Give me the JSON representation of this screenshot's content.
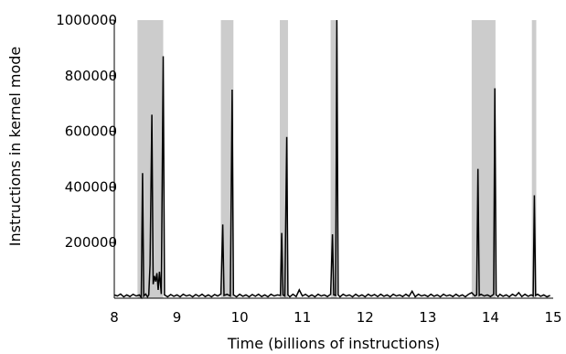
{
  "chart_data": {
    "type": "line",
    "title": "",
    "xlabel": "Time (billions of instructions)",
    "ylabel": "Instructions in kernel mode",
    "xlim": [
      8,
      15
    ],
    "ylim": [
      0,
      1000000
    ],
    "x_ticks": [
      "8",
      "9",
      "10",
      "11",
      "12",
      "13",
      "14",
      "15"
    ],
    "y_ticks": [
      "200000",
      "400000",
      "600000",
      "800000",
      "1000000"
    ],
    "grid": false,
    "legend": "none",
    "line_color": "#000000",
    "shaded_color": "#cccccc",
    "shaded_regions": [
      [
        8.37,
        8.78
      ],
      [
        9.7,
        9.9
      ],
      [
        10.64,
        10.77
      ],
      [
        11.45,
        11.55
      ],
      [
        13.7,
        14.08
      ],
      [
        14.66,
        14.73
      ]
    ],
    "series": [
      {
        "values": [
          [
            8.0,
            12000
          ],
          [
            8.05,
            8000
          ],
          [
            8.1,
            15000
          ],
          [
            8.15,
            5000
          ],
          [
            8.2,
            12000
          ],
          [
            8.25,
            6000
          ],
          [
            8.3,
            14000
          ],
          [
            8.35,
            8000
          ],
          [
            8.4,
            12000
          ],
          [
            8.43,
            3000
          ],
          [
            8.45,
            450000
          ],
          [
            8.47,
            8000
          ],
          [
            8.5,
            15000
          ],
          [
            8.53,
            5000
          ],
          [
            8.55,
            12000
          ],
          [
            8.57,
            120000
          ],
          [
            8.6,
            660000
          ],
          [
            8.62,
            50000
          ],
          [
            8.64,
            80000
          ],
          [
            8.66,
            60000
          ],
          [
            8.68,
            90000
          ],
          [
            8.7,
            30000
          ],
          [
            8.72,
            95000
          ],
          [
            8.75,
            15000
          ],
          [
            8.78,
            870000
          ],
          [
            8.8,
            12000
          ],
          [
            8.85,
            5000
          ],
          [
            8.9,
            13000
          ],
          [
            8.95,
            7000
          ],
          [
            9.0,
            12000
          ],
          [
            9.05,
            5000
          ],
          [
            9.1,
            14000
          ],
          [
            9.15,
            8000
          ],
          [
            9.2,
            12000
          ],
          [
            9.25,
            5000
          ],
          [
            9.3,
            13000
          ],
          [
            9.35,
            7000
          ],
          [
            9.4,
            14000
          ],
          [
            9.45,
            6000
          ],
          [
            9.5,
            12000
          ],
          [
            9.55,
            5000
          ],
          [
            9.6,
            13000
          ],
          [
            9.65,
            8000
          ],
          [
            9.7,
            15000
          ],
          [
            9.73,
            265000
          ],
          [
            9.75,
            10000
          ],
          [
            9.8,
            14000
          ],
          [
            9.85,
            8000
          ],
          [
            9.88,
            750000
          ],
          [
            9.9,
            12000
          ],
          [
            9.95,
            5000
          ],
          [
            10.0,
            14000
          ],
          [
            10.05,
            7000
          ],
          [
            10.1,
            12000
          ],
          [
            10.15,
            5000
          ],
          [
            10.2,
            13000
          ],
          [
            10.25,
            7000
          ],
          [
            10.3,
            14000
          ],
          [
            10.35,
            6000
          ],
          [
            10.4,
            12000
          ],
          [
            10.45,
            5000
          ],
          [
            10.5,
            14000
          ],
          [
            10.55,
            8000
          ],
          [
            10.6,
            12000
          ],
          [
            10.65,
            10000
          ],
          [
            10.67,
            235000
          ],
          [
            10.69,
            12000
          ],
          [
            10.72,
            8000
          ],
          [
            10.75,
            580000
          ],
          [
            10.77,
            12000
          ],
          [
            10.8,
            5000
          ],
          [
            10.85,
            14000
          ],
          [
            10.9,
            6000
          ],
          [
            10.95,
            30000
          ],
          [
            11.0,
            8000
          ],
          [
            11.05,
            14000
          ],
          [
            11.1,
            6000
          ],
          [
            11.15,
            12000
          ],
          [
            11.2,
            5000
          ],
          [
            11.25,
            14000
          ],
          [
            11.3,
            8000
          ],
          [
            11.35,
            12000
          ],
          [
            11.4,
            6000
          ],
          [
            11.45,
            14000
          ],
          [
            11.48,
            230000
          ],
          [
            11.5,
            12000
          ],
          [
            11.53,
            10000
          ],
          [
            11.55,
            1000000
          ],
          [
            11.57,
            12000
          ],
          [
            11.6,
            5000
          ],
          [
            11.65,
            14000
          ],
          [
            11.7,
            8000
          ],
          [
            11.75,
            12000
          ],
          [
            11.8,
            5000
          ],
          [
            11.85,
            14000
          ],
          [
            11.9,
            7000
          ],
          [
            11.95,
            12000
          ],
          [
            12.0,
            5000
          ],
          [
            12.05,
            14000
          ],
          [
            12.1,
            8000
          ],
          [
            12.15,
            13000
          ],
          [
            12.2,
            6000
          ],
          [
            12.25,
            14000
          ],
          [
            12.3,
            7000
          ],
          [
            12.35,
            12000
          ],
          [
            12.4,
            5000
          ],
          [
            12.45,
            14000
          ],
          [
            12.5,
            8000
          ],
          [
            12.55,
            12000
          ],
          [
            12.6,
            6000
          ],
          [
            12.65,
            14000
          ],
          [
            12.7,
            7000
          ],
          [
            12.75,
            25000
          ],
          [
            12.8,
            5000
          ],
          [
            12.85,
            14000
          ],
          [
            12.9,
            8000
          ],
          [
            12.95,
            12000
          ],
          [
            13.0,
            6000
          ],
          [
            13.05,
            14000
          ],
          [
            13.1,
            7000
          ],
          [
            13.15,
            12000
          ],
          [
            13.2,
            5000
          ],
          [
            13.25,
            14000
          ],
          [
            13.3,
            8000
          ],
          [
            13.35,
            12000
          ],
          [
            13.4,
            6000
          ],
          [
            13.45,
            14000
          ],
          [
            13.5,
            7000
          ],
          [
            13.55,
            12000
          ],
          [
            13.6,
            5000
          ],
          [
            13.65,
            14000
          ],
          [
            13.7,
            20000
          ],
          [
            13.75,
            8000
          ],
          [
            13.78,
            12000
          ],
          [
            13.8,
            465000
          ],
          [
            13.82,
            10000
          ],
          [
            13.85,
            14000
          ],
          [
            13.9,
            8000
          ],
          [
            13.95,
            12000
          ],
          [
            14.0,
            6000
          ],
          [
            14.05,
            14000
          ],
          [
            14.07,
            755000
          ],
          [
            14.09,
            12000
          ],
          [
            14.12,
            6000
          ],
          [
            14.15,
            14000
          ],
          [
            14.2,
            7000
          ],
          [
            14.25,
            12000
          ],
          [
            14.3,
            5000
          ],
          [
            14.35,
            14000
          ],
          [
            14.4,
            8000
          ],
          [
            14.45,
            20000
          ],
          [
            14.5,
            6000
          ],
          [
            14.55,
            14000
          ],
          [
            14.6,
            7000
          ],
          [
            14.65,
            12000
          ],
          [
            14.68,
            8000
          ],
          [
            14.7,
            370000
          ],
          [
            14.72,
            10000
          ],
          [
            14.75,
            14000
          ],
          [
            14.8,
            7000
          ],
          [
            14.85,
            12000
          ],
          [
            14.9,
            5000
          ],
          [
            14.95,
            10000
          ]
        ]
      }
    ]
  }
}
